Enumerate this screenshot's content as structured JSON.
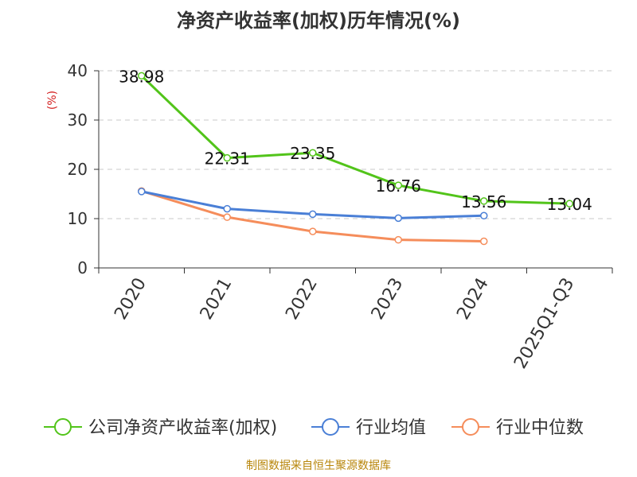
{
  "chart_data": {
    "type": "line",
    "title": "净资产收益率(加权)历年情况(%)",
    "ylabel": "(%)",
    "xlabel": "",
    "ylim": [
      0,
      40
    ],
    "yticks": [
      0,
      10,
      20,
      30,
      40
    ],
    "categories": [
      "2020",
      "2021",
      "2022",
      "2023",
      "2024",
      "2025Q1-Q3"
    ],
    "series": [
      {
        "name": "公司净资产收益率(加权)",
        "color": "#52c41a",
        "values": [
          38.98,
          22.31,
          23.35,
          16.76,
          13.56,
          13.04
        ],
        "labels": [
          "38.98",
          "22.31",
          "23.35",
          "16.76",
          "13.56",
          "13.04"
        ]
      },
      {
        "name": "行业均值",
        "color": "#4a7fd6",
        "values": [
          15.5,
          12.0,
          10.9,
          10.1,
          10.6,
          null
        ]
      },
      {
        "name": "行业中位数",
        "color": "#f58d5b",
        "values": [
          15.6,
          10.3,
          7.4,
          5.7,
          5.4,
          null
        ]
      }
    ],
    "grid": true,
    "legend": "bottom"
  },
  "source": "制图数据来自恒生聚源数据库"
}
